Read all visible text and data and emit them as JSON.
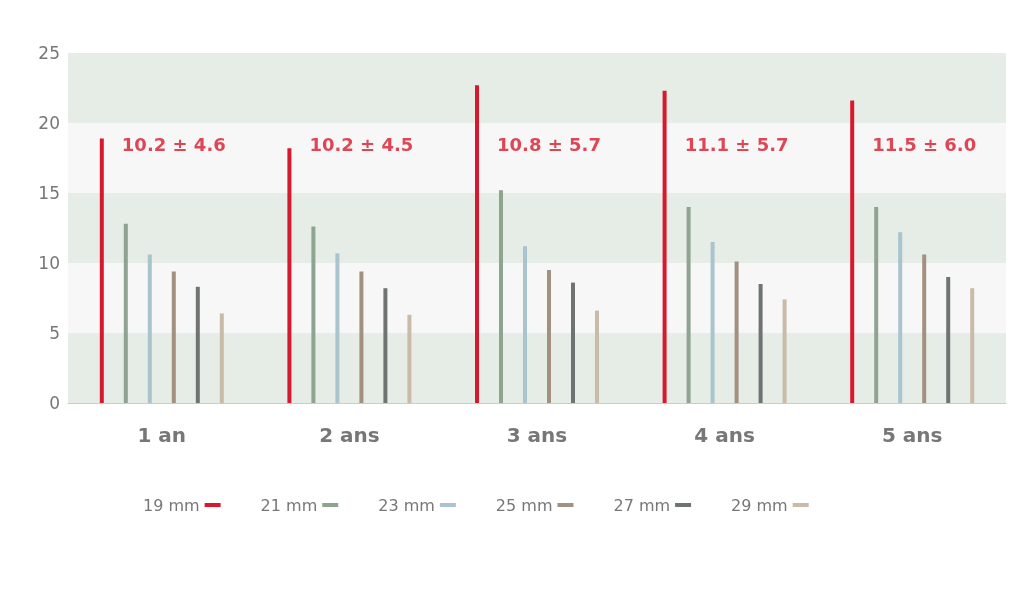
{
  "chart_data": {
    "type": "bar",
    "categories": [
      "1 an",
      "2 ans",
      "3 ans",
      "4 ans",
      "5 ans"
    ],
    "series": [
      {
        "name": "19 mm",
        "color": "#d7192d",
        "values": [
          18.9,
          18.2,
          22.7,
          22.3,
          21.6
        ]
      },
      {
        "name": "21 mm",
        "color": "#8fa391",
        "values": [
          12.8,
          12.6,
          15.2,
          14.0,
          14.0
        ]
      },
      {
        "name": "23 mm",
        "color": "#a9c4cf",
        "values": [
          10.6,
          10.7,
          11.2,
          11.5,
          12.2
        ]
      },
      {
        "name": "25 mm",
        "color": "#a39080",
        "values": [
          9.4,
          9.4,
          9.5,
          10.1,
          10.6
        ]
      },
      {
        "name": "27 mm",
        "color": "#6f7472",
        "values": [
          8.3,
          8.2,
          8.6,
          8.5,
          9.0
        ]
      },
      {
        "name": "29 mm",
        "color": "#c9bba7",
        "values": [
          6.4,
          6.3,
          6.6,
          7.4,
          8.2
        ]
      }
    ],
    "ylim": [
      0,
      25
    ],
    "yticks": [
      0,
      5,
      10,
      15,
      20,
      25
    ],
    "legend": "bottom",
    "annotations": [
      "10.2 ± 4.6",
      "10.2 ± 4.5",
      "10.8 ± 5.7",
      "11.1 ± 5.7",
      "11.5 ± 6.0"
    ]
  }
}
